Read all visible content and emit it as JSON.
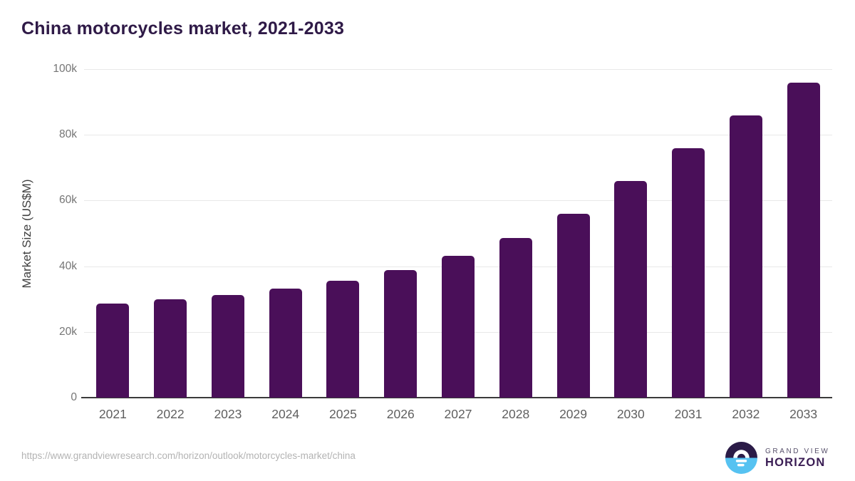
{
  "title": "China motorcycles market, 2021-2033",
  "footer": {
    "source_url": "https://www.grandviewresearch.com/horizon/outlook/motorcycles-market/china",
    "logo": {
      "line1": "GRAND VIEW",
      "line2": "HORIZON"
    }
  },
  "colors": {
    "bg": "#ffffff",
    "title": "#2f1a47",
    "bar": "#4a0f59",
    "gridline": "#e8e8e8",
    "baseline": "#3b3b3b",
    "tick": "#757575",
    "xtick": "#5f5f5f",
    "axis_label": "#404040",
    "url": "#b3b3b3",
    "logo_gray": "#57506b",
    "logo_dark_text": "#3a1d54",
    "logo_circle_top": "#2b1b47",
    "logo_circle_bottom": "#56c2f1"
  },
  "chart_data": {
    "type": "bar",
    "title": "China motorcycles market, 2021-2033",
    "categories": [
      "2021",
      "2022",
      "2023",
      "2024",
      "2025",
      "2026",
      "2027",
      "2028",
      "2029",
      "2030",
      "2031",
      "2032",
      "2033"
    ],
    "values": [
      28700,
      29900,
      31300,
      33200,
      35600,
      38800,
      43100,
      48700,
      55900,
      66000,
      75900,
      86000,
      95900
    ],
    "xlabel": "",
    "ylabel": "Market Size (US$M)",
    "ylim": [
      0,
      100000
    ],
    "yticks": {
      "values": [
        0,
        20000,
        40000,
        60000,
        80000,
        100000
      ],
      "labels": [
        "0",
        "20k",
        "40k",
        "60k",
        "80k",
        "100k"
      ]
    },
    "grid": "horizontal",
    "legend": "none",
    "bar_color": "#4a0f59"
  }
}
